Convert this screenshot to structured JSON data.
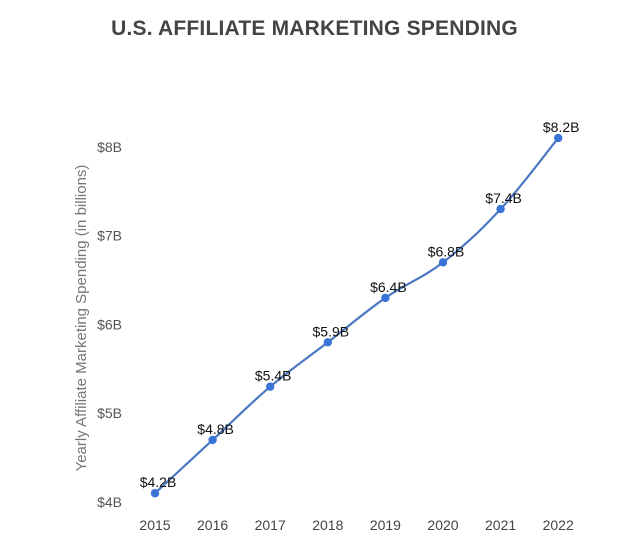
{
  "chart_data": {
    "type": "line",
    "title": "U.S. AFFILIATE MARKETING SPENDING",
    "xlabel": "",
    "ylabel": "Yearly Affiliate Marketing Spending (in billions)",
    "categories": [
      "2015",
      "2016",
      "2017",
      "2018",
      "2019",
      "2020",
      "2021",
      "2022"
    ],
    "series": [
      {
        "name": "Spending",
        "values": [
          4.2,
          4.8,
          5.4,
          5.9,
          6.4,
          6.8,
          7.4,
          8.2
        ],
        "labels": [
          "$4.2B",
          "$4.8B",
          "$5.4B",
          "$5.9B",
          "$6.4B",
          "$6.8B",
          "$7.4B",
          "$8.2B"
        ],
        "color": "#4a78c2",
        "marker_color": "#3a74d6"
      }
    ],
    "yticks": [
      4,
      5,
      6,
      7,
      8
    ],
    "ytick_labels": [
      "$4B",
      "$5B",
      "$6B",
      "$7B",
      "$8B"
    ],
    "ylim": [
      4,
      8.2
    ],
    "grid": false,
    "legend": "none"
  }
}
